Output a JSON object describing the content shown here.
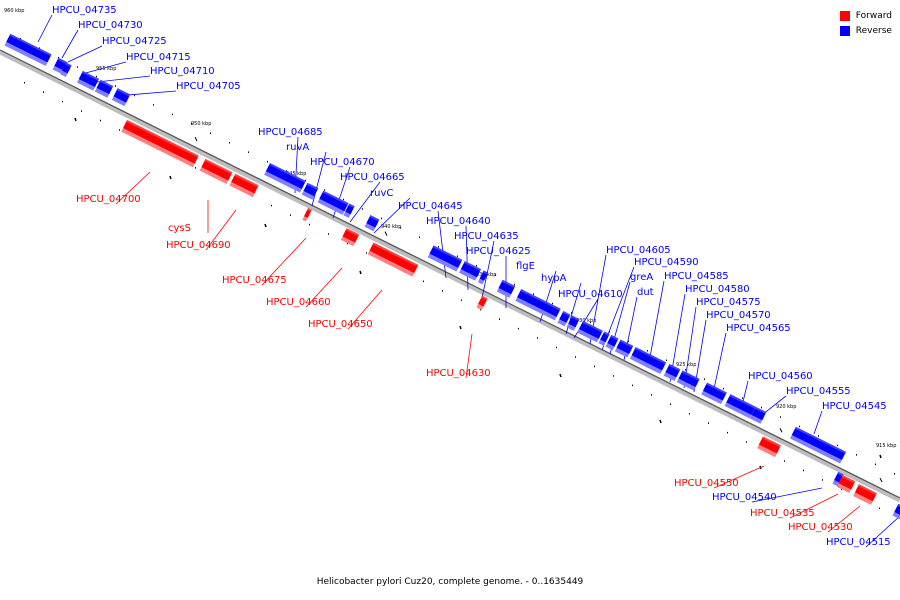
{
  "caption": "Helicobacter pylori Cuz20, complete genome. - 0..1635449",
  "legend": [
    {
      "label": "Forward",
      "color": "#ff0000"
    },
    {
      "label": "Reverse",
      "color": "#0000ff"
    }
  ],
  "ticks": [
    "960 kbp",
    "955 kbp",
    "950 kbp",
    "945 kbp",
    "940 kbp",
    "935 kbp",
    "930 kbp",
    "925 kbp",
    "920 kbp",
    "915 kbp"
  ],
  "genes": [
    {
      "name": "HPCU_04735",
      "strand": "reverse"
    },
    {
      "name": "HPCU_04730",
      "strand": "reverse"
    },
    {
      "name": "HPCU_04725",
      "strand": "reverse"
    },
    {
      "name": "HPCU_04715",
      "strand": "reverse"
    },
    {
      "name": "HPCU_04710",
      "strand": "reverse"
    },
    {
      "name": "HPCU_04705",
      "strand": "reverse"
    },
    {
      "name": "HPCU_04700",
      "strand": "forward"
    },
    {
      "name": "cysS",
      "strand": "forward"
    },
    {
      "name": "HPCU_04690",
      "strand": "forward"
    },
    {
      "name": "HPCU_04685",
      "strand": "reverse"
    },
    {
      "name": "ruvA",
      "strand": "reverse"
    },
    {
      "name": "HPCU_04670",
      "strand": "reverse"
    },
    {
      "name": "HPCU_04665",
      "strand": "reverse"
    },
    {
      "name": "ruvC",
      "strand": "reverse"
    },
    {
      "name": "HPCU_04675",
      "strand": "forward"
    },
    {
      "name": "HPCU_04660",
      "strand": "forward"
    },
    {
      "name": "HPCU_04650",
      "strand": "forward"
    },
    {
      "name": "HPCU_04645",
      "strand": "reverse"
    },
    {
      "name": "HPCU_04640",
      "strand": "reverse"
    },
    {
      "name": "HPCU_04635",
      "strand": "reverse"
    },
    {
      "name": "HPCU_04625",
      "strand": "reverse"
    },
    {
      "name": "flgE",
      "strand": "reverse"
    },
    {
      "name": "hypA",
      "strand": "reverse"
    },
    {
      "name": "HPCU_04610",
      "strand": "reverse"
    },
    {
      "name": "HPCU_04630",
      "strand": "forward"
    },
    {
      "name": "HPCU_04605",
      "strand": "reverse"
    },
    {
      "name": "HPCU_04590",
      "strand": "reverse"
    },
    {
      "name": "greA",
      "strand": "reverse"
    },
    {
      "name": "dut",
      "strand": "reverse"
    },
    {
      "name": "HPCU_04585",
      "strand": "reverse"
    },
    {
      "name": "HPCU_04580",
      "strand": "reverse"
    },
    {
      "name": "HPCU_04575",
      "strand": "reverse"
    },
    {
      "name": "HPCU_04570",
      "strand": "reverse"
    },
    {
      "name": "HPCU_04565",
      "strand": "reverse"
    },
    {
      "name": "HPCU_04560",
      "strand": "reverse"
    },
    {
      "name": "HPCU_04555",
      "strand": "reverse"
    },
    {
      "name": "HPCU_04545",
      "strand": "reverse"
    },
    {
      "name": "HPCU_04550",
      "strand": "forward"
    },
    {
      "name": "HPCU_04540",
      "strand": "reverse"
    },
    {
      "name": "HPCU_04535",
      "strand": "forward"
    },
    {
      "name": "HPCU_04530",
      "strand": "forward"
    },
    {
      "name": "HPCU_04515",
      "strand": "reverse"
    }
  ]
}
